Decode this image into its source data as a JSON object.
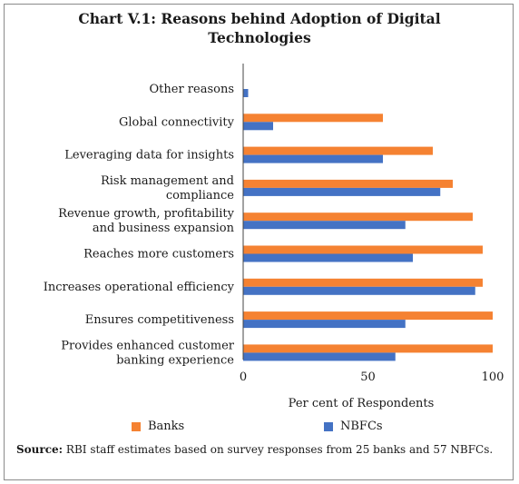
{
  "title_lines": [
    "Chart V.1: Reasons behind Adoption of Digital",
    "Technologies"
  ],
  "source_label": "Source:",
  "source_text": " RBI staff estimates based on survey responses from 25 banks and 57 NBFCs.",
  "colors": {
    "Banks": "#f58232",
    "NBFCs": "#4472c4"
  },
  "chart_data": {
    "type": "bar",
    "orientation": "horizontal",
    "categories": [
      [
        "Other reasons"
      ],
      [
        "Global connectivity"
      ],
      [
        "Leveraging data for insights"
      ],
      [
        "Risk management and",
        "compliance"
      ],
      [
        "Revenue growth, profitability",
        "and business expansion"
      ],
      [
        "Reaches more customers"
      ],
      [
        "Increases operational efficiency"
      ],
      [
        "Ensures competitiveness"
      ],
      [
        "Provides enhanced customer",
        "banking experience"
      ]
    ],
    "series": [
      {
        "name": "Banks",
        "values": [
          0,
          56,
          76,
          84,
          92,
          96,
          96,
          100,
          100
        ]
      },
      {
        "name": "NBFCs",
        "values": [
          2,
          12,
          56,
          79,
          65,
          68,
          93,
          65,
          61
        ]
      }
    ],
    "xlabel": "Per cent of Respondents",
    "xlim": [
      0,
      100
    ],
    "xticks": [
      0,
      50,
      100
    ],
    "grid": false,
    "legend_position": "bottom"
  }
}
